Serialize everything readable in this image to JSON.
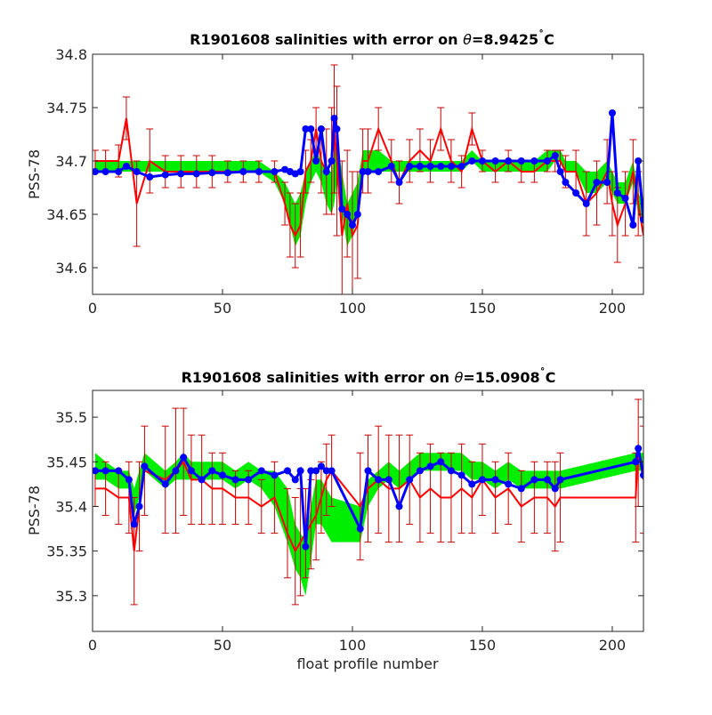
{
  "chart_data": [
    {
      "type": "line",
      "title": "R1901608 salinities with error on θ=8.9425˚C",
      "title_parts": {
        "prefix": "R1901608 salinities with error on ",
        "symbol": "θ",
        "value": "=8.9425",
        "degree": "˚",
        "unit": "C"
      },
      "xlabel": "",
      "ylabel": "PSS-78",
      "xlim": [
        0,
        212
      ],
      "ylim": [
        34.575,
        34.8
      ],
      "xticks": [
        0,
        50,
        100,
        150,
        200
      ],
      "xtick_labels": [
        "0",
        "50",
        "100",
        "150",
        "200"
      ],
      "yticks": [
        34.6,
        34.65,
        34.7,
        34.75,
        34.8
      ],
      "ytick_labels": [
        "34.6",
        "34.65",
        "34.7",
        "34.75",
        "34.8"
      ],
      "grid": false,
      "colors": {
        "red_series": "#ff0000",
        "errorbar": "#cc0000",
        "green_band": "#00ee00",
        "blue_series": "#0000ff"
      },
      "x": [
        1,
        5,
        10,
        13,
        17,
        22,
        28,
        34,
        40,
        46,
        52,
        58,
        64,
        70,
        74,
        76,
        78,
        80,
        82,
        84,
        86,
        88,
        90,
        92,
        93,
        94,
        96,
        98,
        100,
        102,
        104,
        106,
        110,
        115,
        118,
        122,
        126,
        130,
        134,
        138,
        142,
        146,
        150,
        155,
        160,
        165,
        170,
        175,
        178,
        180,
        182,
        186,
        190,
        194,
        198,
        200,
        202,
        205,
        208,
        210,
        212
      ],
      "red_series": [
        34.7,
        34.7,
        34.7,
        34.74,
        34.66,
        34.7,
        34.69,
        34.69,
        34.69,
        34.69,
        34.69,
        34.69,
        34.69,
        34.69,
        34.66,
        34.64,
        34.63,
        34.64,
        34.69,
        34.7,
        34.73,
        34.7,
        34.69,
        34.7,
        34.73,
        34.7,
        34.63,
        34.66,
        34.63,
        34.64,
        34.7,
        34.7,
        34.73,
        34.7,
        34.68,
        34.7,
        34.71,
        34.7,
        34.73,
        34.7,
        34.69,
        34.73,
        34.7,
        34.69,
        34.7,
        34.69,
        34.69,
        34.7,
        34.7,
        34.7,
        34.69,
        34.69,
        34.66,
        34.67,
        34.69,
        34.66,
        34.64,
        34.66,
        34.69,
        34.66,
        34.63
      ],
      "red_errors": [
        0.01,
        0.01,
        0.015,
        0.02,
        0.04,
        0.03,
        0.015,
        0.015,
        0.015,
        0.015,
        0.01,
        0.01,
        0.01,
        0.01,
        0.02,
        0.03,
        0.03,
        0.03,
        0.02,
        0.02,
        0.02,
        0.03,
        0.04,
        0.05,
        0.06,
        0.07,
        0.07,
        0.05,
        0.06,
        0.05,
        0.03,
        0.03,
        0.02,
        0.02,
        0.02,
        0.02,
        0.02,
        0.02,
        0.02,
        0.02,
        0.015,
        0.015,
        0.01,
        0.01,
        0.01,
        0.01,
        0.01,
        0.01,
        0.01,
        0.01,
        0.015,
        0.02,
        0.03,
        0.03,
        0.03,
        0.03,
        0.035,
        0.03,
        0.03,
        0.03,
        0.03
      ],
      "green_band": [
        [
          34.69,
          34.7
        ],
        [
          34.69,
          34.7
        ],
        [
          34.69,
          34.7
        ],
        [
          34.69,
          34.7
        ],
        [
          34.69,
          34.7
        ],
        [
          34.69,
          34.7
        ],
        [
          34.69,
          34.7
        ],
        [
          34.69,
          34.7
        ],
        [
          34.69,
          34.7
        ],
        [
          34.69,
          34.7
        ],
        [
          34.69,
          34.7
        ],
        [
          34.69,
          34.7
        ],
        [
          34.69,
          34.7
        ],
        [
          34.68,
          34.69
        ],
        [
          34.66,
          34.68
        ],
        [
          34.64,
          34.67
        ],
        [
          34.62,
          34.66
        ],
        [
          34.63,
          34.67
        ],
        [
          34.66,
          34.69
        ],
        [
          34.68,
          34.7
        ],
        [
          34.69,
          34.71
        ],
        [
          34.68,
          34.7
        ],
        [
          34.66,
          34.69
        ],
        [
          34.65,
          34.69
        ],
        [
          34.66,
          34.71
        ],
        [
          34.68,
          34.72
        ],
        [
          34.65,
          34.69
        ],
        [
          34.62,
          34.66
        ],
        [
          34.63,
          34.67
        ],
        [
          34.65,
          34.68
        ],
        [
          34.69,
          34.71
        ],
        [
          34.69,
          34.71
        ],
        [
          34.69,
          34.71
        ],
        [
          34.69,
          34.7
        ],
        [
          34.69,
          34.7
        ],
        [
          34.69,
          34.7
        ],
        [
          34.69,
          34.7
        ],
        [
          34.69,
          34.7
        ],
        [
          34.69,
          34.7
        ],
        [
          34.69,
          34.7
        ],
        [
          34.69,
          34.7
        ],
        [
          34.7,
          34.71
        ],
        [
          34.69,
          34.7
        ],
        [
          34.69,
          34.7
        ],
        [
          34.69,
          34.7
        ],
        [
          34.69,
          34.7
        ],
        [
          34.69,
          34.7
        ],
        [
          34.69,
          34.71
        ],
        [
          34.7,
          34.71
        ],
        [
          34.7,
          34.71
        ],
        [
          34.69,
          34.7
        ],
        [
          34.69,
          34.7
        ],
        [
          34.67,
          34.69
        ],
        [
          34.67,
          34.69
        ],
        [
          34.68,
          34.7
        ],
        [
          34.67,
          34.69
        ],
        [
          34.66,
          34.68
        ],
        [
          34.66,
          34.68
        ],
        [
          34.68,
          34.7
        ],
        [
          34.65,
          34.67
        ],
        [
          34.64,
          34.66
        ]
      ],
      "blue_series": [
        34.69,
        34.69,
        34.69,
        34.695,
        34.69,
        34.685,
        34.687,
        34.688,
        34.688,
        34.689,
        34.689,
        34.69,
        34.69,
        34.69,
        34.692,
        34.69,
        34.688,
        34.69,
        34.73,
        34.73,
        34.7,
        34.73,
        34.69,
        34.7,
        34.74,
        34.73,
        34.655,
        34.65,
        34.64,
        34.65,
        34.69,
        34.69,
        34.69,
        34.695,
        34.68,
        34.695,
        34.695,
        34.695,
        34.695,
        34.695,
        34.695,
        34.7,
        34.7,
        34.7,
        34.7,
        34.7,
        34.7,
        34.7,
        34.705,
        34.69,
        34.68,
        34.67,
        34.66,
        34.68,
        34.68,
        34.745,
        34.67,
        34.665,
        34.64,
        34.7,
        34.645
      ]
    },
    {
      "type": "line",
      "title": "R1901608 salinities with error on θ=15.0908˚C",
      "title_parts": {
        "prefix": "R1901608 salinities with error on ",
        "symbol": "θ",
        "value": "=15.0908",
        "degree": "˚",
        "unit": "C"
      },
      "xlabel": "float profile number",
      "ylabel": "PSS-78",
      "xlim": [
        0,
        212
      ],
      "ylim": [
        35.26,
        35.53
      ],
      "xticks": [
        0,
        50,
        100,
        150,
        200
      ],
      "xtick_labels": [
        "0",
        "50",
        "100",
        "150",
        "200"
      ],
      "yticks": [
        35.3,
        35.35,
        35.4,
        35.45,
        35.5
      ],
      "ytick_labels": [
        "35.3",
        "35.35",
        "35.4",
        "35.45",
        "35.5"
      ],
      "grid": false,
      "colors": {
        "red_series": "#ff0000",
        "errorbar": "#cc0000",
        "green_band": "#00ee00",
        "blue_series": "#0000ff"
      },
      "x": [
        1,
        5,
        10,
        14,
        16,
        18,
        20,
        28,
        32,
        35,
        38,
        42,
        46,
        50,
        55,
        60,
        65,
        70,
        75,
        78,
        80,
        82,
        84,
        86,
        88,
        90,
        92,
        103,
        106,
        110,
        114,
        118,
        122,
        126,
        130,
        134,
        138,
        142,
        146,
        150,
        155,
        160,
        165,
        170,
        175,
        178,
        180,
        209,
        210,
        212
      ],
      "red_series": [
        35.42,
        35.42,
        35.41,
        35.41,
        35.35,
        35.4,
        35.44,
        35.43,
        35.44,
        35.45,
        35.43,
        35.43,
        35.42,
        35.42,
        35.41,
        35.41,
        35.4,
        35.41,
        35.37,
        35.35,
        35.36,
        35.37,
        35.38,
        35.39,
        35.41,
        35.43,
        35.44,
        35.4,
        35.42,
        35.43,
        35.42,
        35.42,
        35.43,
        35.41,
        35.42,
        35.41,
        35.41,
        35.42,
        35.41,
        35.43,
        35.41,
        35.42,
        35.4,
        35.41,
        35.41,
        35.4,
        35.41,
        35.41,
        35.46,
        35.43
      ],
      "red_errors": [
        0.02,
        0.03,
        0.03,
        0.04,
        0.06,
        0.05,
        0.05,
        0.06,
        0.07,
        0.06,
        0.05,
        0.05,
        0.04,
        0.04,
        0.03,
        0.03,
        0.03,
        0.04,
        0.05,
        0.06,
        0.06,
        0.05,
        0.05,
        0.05,
        0.04,
        0.04,
        0.04,
        0.06,
        0.06,
        0.06,
        0.06,
        0.06,
        0.05,
        0.05,
        0.05,
        0.05,
        0.05,
        0.05,
        0.04,
        0.04,
        0.04,
        0.04,
        0.04,
        0.04,
        0.04,
        0.05,
        0.05,
        0.05,
        0.06,
        0.06
      ],
      "green_band": [
        [
          35.43,
          35.46
        ],
        [
          35.43,
          35.45
        ],
        [
          35.42,
          35.44
        ],
        [
          35.42,
          35.44
        ],
        [
          35.39,
          35.42
        ],
        [
          35.41,
          35.44
        ],
        [
          35.44,
          35.46
        ],
        [
          35.42,
          35.44
        ],
        [
          35.43,
          35.45
        ],
        [
          35.43,
          35.46
        ],
        [
          35.43,
          35.45
        ],
        [
          35.43,
          35.45
        ],
        [
          35.43,
          35.45
        ],
        [
          35.43,
          35.45
        ],
        [
          35.42,
          35.44
        ],
        [
          35.43,
          35.45
        ],
        [
          35.42,
          35.44
        ],
        [
          35.4,
          35.44
        ],
        [
          35.36,
          35.42
        ],
        [
          35.33,
          35.38
        ],
        [
          35.32,
          35.37
        ],
        [
          35.3,
          35.36
        ],
        [
          35.34,
          35.4
        ],
        [
          35.38,
          35.43
        ],
        [
          35.38,
          35.43
        ],
        [
          35.37,
          35.42
        ],
        [
          35.36,
          35.41
        ],
        [
          35.36,
          35.4
        ],
        [
          35.4,
          35.43
        ],
        [
          35.42,
          35.44
        ],
        [
          35.43,
          35.45
        ],
        [
          35.42,
          35.44
        ],
        [
          35.43,
          35.45
        ],
        [
          35.44,
          35.46
        ],
        [
          35.44,
          35.46
        ],
        [
          35.44,
          35.46
        ],
        [
          35.44,
          35.46
        ],
        [
          35.44,
          35.46
        ],
        [
          35.43,
          35.45
        ],
        [
          35.43,
          35.45
        ],
        [
          35.42,
          35.44
        ],
        [
          35.43,
          35.45
        ],
        [
          35.42,
          35.44
        ],
        [
          35.42,
          35.44
        ],
        [
          35.42,
          35.44
        ],
        [
          35.42,
          35.44
        ],
        [
          35.42,
          35.44
        ],
        [
          35.44,
          35.46
        ],
        [
          35.44,
          35.46
        ],
        [
          35.44,
          35.46
        ]
      ],
      "blue_series": [
        35.44,
        35.44,
        35.44,
        35.43,
        35.38,
        35.4,
        35.445,
        35.425,
        35.44,
        35.455,
        35.44,
        35.43,
        35.44,
        35.435,
        35.43,
        35.43,
        35.44,
        35.435,
        35.44,
        35.43,
        35.44,
        35.355,
        35.44,
        35.44,
        35.445,
        35.44,
        35.44,
        35.375,
        35.44,
        35.43,
        35.43,
        35.4,
        35.43,
        35.44,
        35.445,
        35.45,
        35.44,
        35.435,
        35.425,
        35.43,
        35.43,
        35.425,
        35.42,
        35.43,
        35.43,
        35.42,
        35.43,
        35.45,
        35.465,
        35.435
      ]
    }
  ]
}
